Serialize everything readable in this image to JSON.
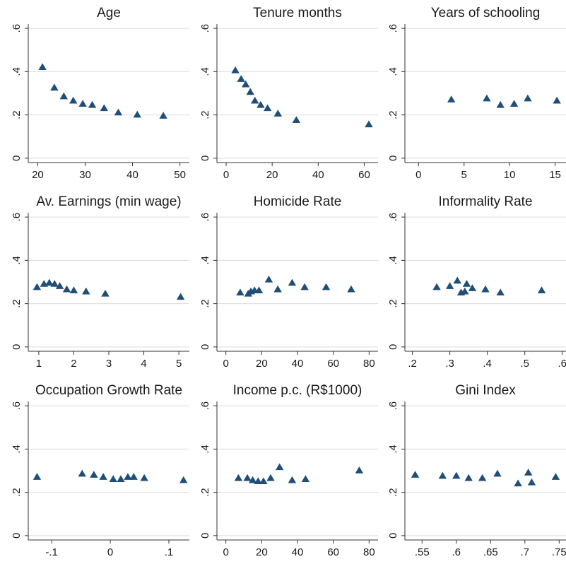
{
  "marker_color": "#1f4e79",
  "grid_color": "#dcdcdc",
  "chart_data": [
    {
      "type": "scatter",
      "title": "Age",
      "xlim": [
        18,
        52
      ],
      "ylim": [
        -0.02,
        0.62
      ],
      "xticks": [
        20,
        30,
        40,
        50
      ],
      "xtick_labels": [
        "20",
        "30",
        "40",
        "50"
      ],
      "yticks": [
        0,
        0.2,
        0.4,
        0.6
      ],
      "ytick_labels": [
        "0",
        ".2",
        ".4",
        ".6"
      ],
      "grid": true,
      "x": [
        21,
        23.5,
        25.5,
        27.5,
        29.5,
        31.5,
        34,
        37,
        41,
        46.5
      ],
      "y": [
        0.42,
        0.325,
        0.285,
        0.265,
        0.25,
        0.245,
        0.23,
        0.21,
        0.2,
        0.195
      ]
    },
    {
      "type": "scatter",
      "title": "Tenure months",
      "xlim": [
        -4,
        66
      ],
      "ylim": [
        -0.02,
        0.62
      ],
      "xticks": [
        0,
        20,
        40,
        60
      ],
      "xtick_labels": [
        "0",
        "20",
        "40",
        "60"
      ],
      "yticks": [
        0,
        0.2,
        0.4,
        0.6
      ],
      "ytick_labels": [
        "0",
        ".2",
        ".4",
        ".6"
      ],
      "grid": true,
      "x": [
        4,
        6.5,
        8.5,
        10.5,
        12.5,
        15,
        18,
        22.5,
        30.5,
        62
      ],
      "y": [
        0.405,
        0.365,
        0.34,
        0.305,
        0.265,
        0.245,
        0.23,
        0.205,
        0.175,
        0.155
      ]
    },
    {
      "type": "scatter",
      "title": "Years of schooling",
      "xlim": [
        -1.5,
        16.2
      ],
      "ylim": [
        -0.02,
        0.62
      ],
      "xticks": [
        0,
        5,
        10,
        15
      ],
      "xtick_labels": [
        "0",
        "5",
        "10",
        "15"
      ],
      "yticks": [
        0,
        0.2,
        0.4,
        0.6
      ],
      "ytick_labels": [
        "0",
        ".2",
        ".4",
        ".6"
      ],
      "grid": true,
      "x": [
        3.6,
        7.5,
        9,
        10.5,
        12,
        15.2
      ],
      "y": [
        0.27,
        0.275,
        0.245,
        0.25,
        0.275,
        0.265
      ]
    },
    {
      "type": "scatter",
      "title": "Av. Earnings (min wage)",
      "xlim": [
        0.7,
        5.3
      ],
      "ylim": [
        -0.02,
        0.62
      ],
      "xticks": [
        1,
        2,
        3,
        4,
        5
      ],
      "xtick_labels": [
        "1",
        "2",
        "3",
        "4",
        "5"
      ],
      "yticks": [
        0,
        0.2,
        0.4,
        0.6
      ],
      "ytick_labels": [
        "0",
        ".2",
        ".4",
        ".6"
      ],
      "grid": true,
      "x": [
        0.95,
        1.15,
        1.3,
        1.45,
        1.6,
        1.8,
        2.0,
        2.35,
        2.9,
        5.05
      ],
      "y": [
        0.275,
        0.29,
        0.295,
        0.29,
        0.28,
        0.265,
        0.26,
        0.255,
        0.245,
        0.23
      ]
    },
    {
      "type": "scatter",
      "title": "Homicide Rate",
      "xlim": [
        -5,
        85
      ],
      "ylim": [
        -0.02,
        0.62
      ],
      "xticks": [
        0,
        20,
        40,
        60,
        80
      ],
      "xtick_labels": [
        "0",
        "20",
        "40",
        "60",
        "80"
      ],
      "yticks": [
        0,
        0.2,
        0.4,
        0.6
      ],
      "ytick_labels": [
        "0",
        ".2",
        ".4",
        ".6"
      ],
      "grid": true,
      "x": [
        8,
        12.5,
        14,
        16,
        18.5,
        24,
        29,
        37,
        44,
        56,
        70
      ],
      "y": [
        0.25,
        0.245,
        0.255,
        0.26,
        0.26,
        0.31,
        0.265,
        0.295,
        0.275,
        0.275,
        0.265
      ]
    },
    {
      "type": "scatter",
      "title": "Informality Rate",
      "xlim": [
        0.18,
        0.61
      ],
      "ylim": [
        -0.02,
        0.62
      ],
      "xticks": [
        0.2,
        0.3,
        0.4,
        0.5,
        0.6
      ],
      "xtick_labels": [
        ".2",
        ".3",
        ".4",
        ".5",
        ".6"
      ],
      "yticks": [
        0,
        0.2,
        0.4,
        0.6
      ],
      "ytick_labels": [
        "0",
        ".2",
        ".4",
        ".6"
      ],
      "grid": true,
      "x": [
        0.265,
        0.3,
        0.32,
        0.33,
        0.34,
        0.345,
        0.36,
        0.395,
        0.435,
        0.545
      ],
      "y": [
        0.275,
        0.28,
        0.305,
        0.25,
        0.255,
        0.29,
        0.27,
        0.265,
        0.25,
        0.26
      ]
    },
    {
      "type": "scatter",
      "title": "Occupation Growth Rate",
      "xlim": [
        -0.14,
        0.135
      ],
      "ylim": [
        -0.02,
        0.62
      ],
      "xticks": [
        -0.1,
        0,
        0.1
      ],
      "xtick_labels": [
        "-.1",
        "0",
        ".1"
      ],
      "yticks": [
        0,
        0.2,
        0.4,
        0.6
      ],
      "ytick_labels": [
        "0",
        ".2",
        ".4",
        ".6"
      ],
      "grid": true,
      "x": [
        -0.125,
        -0.048,
        -0.028,
        -0.012,
        0.005,
        0.018,
        0.03,
        0.04,
        0.058,
        0.125
      ],
      "y": [
        0.27,
        0.285,
        0.28,
        0.27,
        0.26,
        0.26,
        0.27,
        0.27,
        0.265,
        0.255
      ]
    },
    {
      "type": "scatter",
      "title": "Income p.c. (R$1000)",
      "xlim": [
        -5,
        85
      ],
      "ylim": [
        -0.02,
        0.62
      ],
      "xticks": [
        0,
        20,
        40,
        60,
        80
      ],
      "xtick_labels": [
        "0",
        "20",
        "40",
        "60",
        "80"
      ],
      "yticks": [
        0,
        0.2,
        0.4,
        0.6
      ],
      "ytick_labels": [
        "0",
        ".2",
        ".4",
        ".6"
      ],
      "grid": true,
      "x": [
        7,
        12,
        15,
        18,
        21,
        25,
        30,
        37,
        44.5,
        74.5
      ],
      "y": [
        0.265,
        0.265,
        0.255,
        0.25,
        0.25,
        0.265,
        0.315,
        0.255,
        0.26,
        0.3
      ]
    },
    {
      "type": "scatter",
      "title": "Gini Index",
      "xlim": [
        0.525,
        0.76
      ],
      "ylim": [
        -0.02,
        0.62
      ],
      "xticks": [
        0.55,
        0.6,
        0.65,
        0.7,
        0.75
      ],
      "xtick_labels": [
        ".55",
        ".6",
        ".65",
        ".7",
        ".75"
      ],
      "yticks": [
        0,
        0.2,
        0.4,
        0.6
      ],
      "ytick_labels": [
        "0",
        ".2",
        ".4",
        ".6"
      ],
      "grid": true,
      "x": [
        0.54,
        0.58,
        0.6,
        0.618,
        0.638,
        0.66,
        0.69,
        0.705,
        0.71,
        0.745
      ],
      "y": [
        0.28,
        0.275,
        0.275,
        0.265,
        0.265,
        0.285,
        0.24,
        0.29,
        0.245,
        0.27
      ]
    }
  ]
}
